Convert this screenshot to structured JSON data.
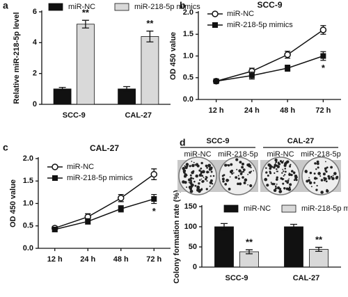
{
  "chart_data": [
    {
      "panel": "a",
      "type": "bar",
      "ylabel": "Relative miR-218-5p level",
      "categories": [
        "SCC-9",
        "CAL-27"
      ],
      "series": [
        {
          "name": "miR-NC",
          "color": "#111111",
          "values": [
            1.0,
            1.0
          ],
          "errors": [
            0.1,
            0.15
          ]
        },
        {
          "name": "miR-218-5p mimics",
          "color": "#d9d9d9",
          "values": [
            5.2,
            4.4
          ],
          "errors": [
            0.25,
            0.35
          ],
          "significance": [
            "**",
            "**"
          ]
        }
      ],
      "ylim": [
        0,
        6
      ],
      "yticks": [
        0,
        2,
        4,
        6
      ]
    },
    {
      "panel": "b",
      "type": "line",
      "title": "SCC-9",
      "ylabel": "OD 450 value",
      "categories": [
        "12 h",
        "24 h",
        "48 h",
        "72 h"
      ],
      "series": [
        {
          "name": "miR-NC",
          "color": "#111111",
          "marker": "open-circle",
          "values": [
            0.42,
            0.65,
            1.03,
            1.6
          ],
          "errors": [
            0.04,
            0.07,
            0.08,
            0.1
          ]
        },
        {
          "name": "miR-218-5p mimics",
          "color": "#111111",
          "marker": "square",
          "values": [
            0.42,
            0.55,
            0.72,
            1.0
          ],
          "errors": [
            0.04,
            0.08,
            0.07,
            0.1
          ],
          "significance": [
            null,
            null,
            null,
            "*"
          ]
        }
      ],
      "ylim": [
        0,
        2
      ],
      "yticks": [
        {
          "value": 0,
          "label": "0.0"
        },
        0.5,
        {
          "value": 1,
          "label": "1.0"
        },
        1.5,
        {
          "value": 2,
          "label": "2.0"
        }
      ]
    },
    {
      "panel": "c",
      "type": "line",
      "title": "CAL-27",
      "ylabel": "OD 450 value",
      "categories": [
        "12 h",
        "24 h",
        "48 h",
        "72 h"
      ],
      "series": [
        {
          "name": "miR-NC",
          "color": "#111111",
          "marker": "open-circle",
          "values": [
            0.45,
            0.7,
            1.12,
            1.65
          ],
          "errors": [
            0.04,
            0.07,
            0.08,
            0.12
          ]
        },
        {
          "name": "miR-218-5p mimics",
          "color": "#111111",
          "marker": "square",
          "values": [
            0.42,
            0.6,
            0.88,
            1.1
          ],
          "errors": [
            0.05,
            0.06,
            0.07,
            0.1
          ],
          "significance": [
            null,
            null,
            null,
            "*"
          ]
        }
      ],
      "ylim": [
        0,
        2
      ],
      "yticks": [
        {
          "value": 0,
          "label": "0.0"
        },
        0.5,
        {
          "value": 1,
          "label": "1.0"
        },
        1.5,
        {
          "value": 2,
          "label": "2.0"
        }
      ]
    },
    {
      "panel": "d",
      "type": "bar",
      "ylabel": "Colony formation rate (%)",
      "images": [
        {
          "title": "SCC-9",
          "labels": [
            "miR-NC",
            "miR-218-5p"
          ]
        },
        {
          "title": "CAL-27",
          "labels": [
            "miR-NC",
            "miR-218-5p"
          ]
        }
      ],
      "categories": [
        "SCC-9",
        "CAL-27"
      ],
      "series": [
        {
          "name": "miR-NC",
          "color": "#111111",
          "values": [
            100,
            100
          ],
          "errors": [
            8,
            6
          ]
        },
        {
          "name": "miR-218-5p mimics",
          "color": "#d9d9d9",
          "values": [
            38,
            44
          ],
          "errors": [
            5,
            5
          ],
          "significance": [
            "**",
            "**"
          ]
        }
      ],
      "ylim": [
        0,
        150
      ],
      "yticks": [
        0,
        50,
        100,
        150
      ]
    }
  ]
}
